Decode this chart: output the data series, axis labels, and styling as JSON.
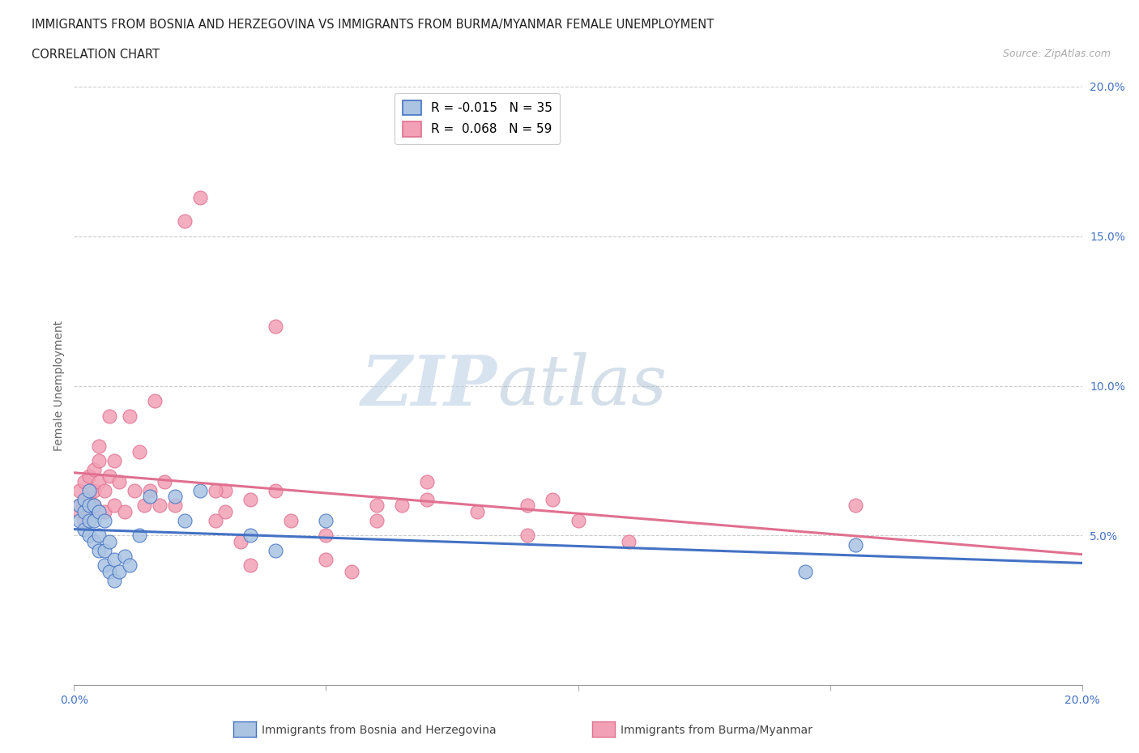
{
  "title_line1": "IMMIGRANTS FROM BOSNIA AND HERZEGOVINA VS IMMIGRANTS FROM BURMA/MYANMAR FEMALE UNEMPLOYMENT",
  "title_line2": "CORRELATION CHART",
  "source": "Source: ZipAtlas.com",
  "ylabel": "Female Unemployment",
  "xlim": [
    0.0,
    0.2
  ],
  "ylim": [
    0.0,
    0.2
  ],
  "xticks": [
    0.0,
    0.05,
    0.1,
    0.15,
    0.2
  ],
  "yticks": [
    0.0,
    0.05,
    0.1,
    0.15,
    0.2
  ],
  "watermark_zip": "ZIP",
  "watermark_atlas": "atlas",
  "legend_r1": "R = -0.015",
  "legend_n1": "N = 35",
  "legend_r2": "R =  0.068",
  "legend_n2": "N = 59",
  "color_bosnia": "#aac4e2",
  "color_burma": "#f2a0b5",
  "color_blue_line": "#4472c4",
  "color_pink_line": "#e07090",
  "color_axis_labels": "#4472c4",
  "bosnia_x": [
    0.001,
    0.001,
    0.002,
    0.002,
    0.002,
    0.003,
    0.003,
    0.003,
    0.003,
    0.004,
    0.004,
    0.004,
    0.005,
    0.005,
    0.005,
    0.006,
    0.006,
    0.006,
    0.007,
    0.007,
    0.008,
    0.008,
    0.009,
    0.01,
    0.011,
    0.013,
    0.015,
    0.02,
    0.022,
    0.025,
    0.035,
    0.04,
    0.05,
    0.145,
    0.155
  ],
  "bosnia_y": [
    0.055,
    0.06,
    0.058,
    0.052,
    0.062,
    0.05,
    0.055,
    0.06,
    0.065,
    0.048,
    0.055,
    0.06,
    0.045,
    0.05,
    0.058,
    0.04,
    0.045,
    0.055,
    0.038,
    0.048,
    0.035,
    0.042,
    0.038,
    0.043,
    0.04,
    0.05,
    0.063,
    0.063,
    0.055,
    0.065,
    0.05,
    0.045,
    0.055,
    0.038,
    0.047
  ],
  "burma_x": [
    0.001,
    0.001,
    0.001,
    0.002,
    0.002,
    0.002,
    0.003,
    0.003,
    0.003,
    0.004,
    0.004,
    0.004,
    0.005,
    0.005,
    0.005,
    0.006,
    0.006,
    0.007,
    0.007,
    0.008,
    0.008,
    0.009,
    0.01,
    0.011,
    0.012,
    0.013,
    0.014,
    0.015,
    0.016,
    0.017,
    0.018,
    0.02,
    0.022,
    0.025,
    0.028,
    0.03,
    0.033,
    0.035,
    0.04,
    0.043,
    0.05,
    0.055,
    0.06,
    0.065,
    0.07,
    0.08,
    0.09,
    0.095,
    0.1,
    0.11,
    0.028,
    0.03,
    0.035,
    0.04,
    0.05,
    0.06,
    0.07,
    0.09,
    0.155
  ],
  "burma_y": [
    0.06,
    0.058,
    0.065,
    0.055,
    0.06,
    0.068,
    0.062,
    0.07,
    0.058,
    0.065,
    0.072,
    0.06,
    0.08,
    0.068,
    0.075,
    0.058,
    0.065,
    0.09,
    0.07,
    0.06,
    0.075,
    0.068,
    0.058,
    0.09,
    0.065,
    0.078,
    0.06,
    0.065,
    0.095,
    0.06,
    0.068,
    0.06,
    0.155,
    0.163,
    0.055,
    0.065,
    0.048,
    0.062,
    0.12,
    0.055,
    0.05,
    0.038,
    0.055,
    0.06,
    0.062,
    0.058,
    0.05,
    0.062,
    0.055,
    0.048,
    0.065,
    0.058,
    0.04,
    0.065,
    0.042,
    0.06,
    0.068,
    0.06,
    0.06
  ]
}
